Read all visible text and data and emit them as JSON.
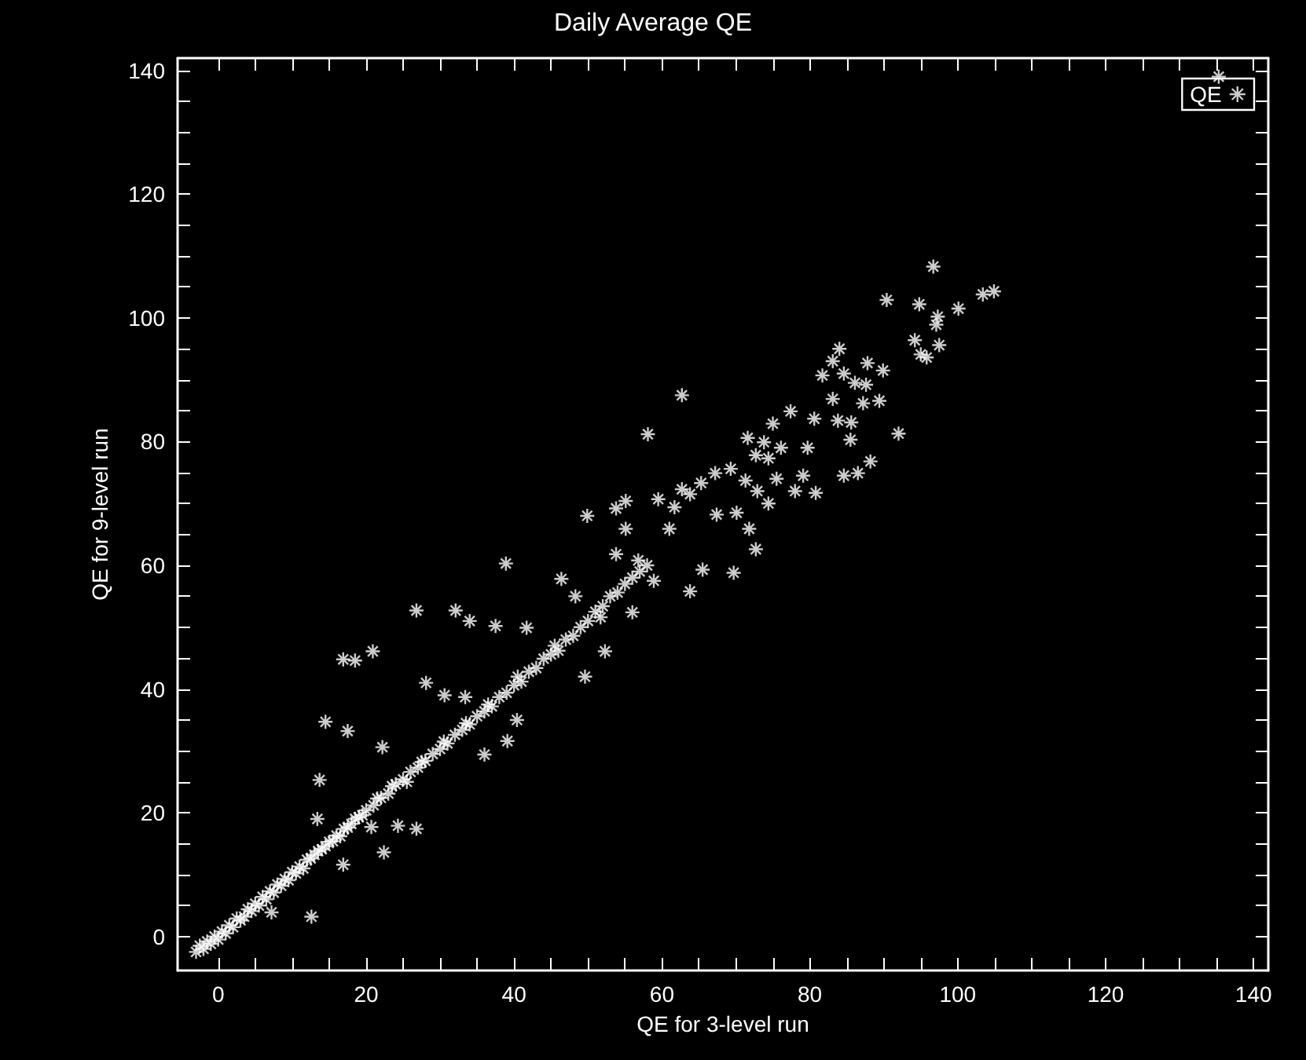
{
  "chart_data": {
    "type": "scatter",
    "title": "Daily Average QE",
    "xlabel": "QE for 3-level run",
    "ylabel": "QE for 9-level run",
    "xlim": [
      -5.5,
      142
    ],
    "ylim": [
      -5.5,
      142
    ],
    "xticks": [
      0,
      20,
      40,
      60,
      80,
      100,
      120,
      140
    ],
    "yticks": [
      0,
      20,
      40,
      60,
      80,
      100,
      120,
      140
    ],
    "legend": "top right",
    "marker": "cross",
    "grid": false,
    "series": [
      {
        "name": "QE",
        "color": "#ffffff",
        "x": [
          -3,
          -2.5,
          -2,
          -1.5,
          -1,
          -0.5,
          0,
          0.5,
          1,
          1.5,
          2,
          2.5,
          3,
          3.5,
          4,
          4.5,
          5,
          5.5,
          6,
          6.5,
          7,
          7.5,
          8,
          8.5,
          9,
          9.5,
          10,
          10.5,
          11,
          11.5,
          12,
          12.5,
          13,
          13.5,
          14,
          14.5,
          15,
          15.5,
          16,
          16.5,
          17,
          17.5,
          18,
          18.5,
          19,
          19.5,
          20,
          21,
          21.5,
          22,
          23,
          23.5,
          24,
          25,
          25.5,
          26,
          27,
          27.5,
          28,
          29,
          30,
          30.5,
          31,
          32,
          33,
          33.5,
          34,
          35,
          36,
          36.5,
          37,
          38,
          39,
          40,
          40.5,
          41,
          42,
          43,
          44,
          45,
          45.5,
          46,
          47,
          48,
          49,
          50,
          51,
          52,
          53,
          54,
          55,
          56,
          57,
          58,
          49.9,
          53.8,
          38.9,
          46.4,
          26.8,
          32.1,
          34,
          37.5,
          41.7,
          16.9,
          18.5,
          20.9,
          28.1,
          30.6,
          33.4,
          14.5,
          17.5,
          22.2,
          40.4,
          39.1,
          36,
          13.7,
          13.4,
          20.7,
          24.3,
          26.8,
          22.4,
          16.9,
          12.6,
          7.2,
          49.6,
          52.3,
          135.3,
          96.7,
          90.4,
          94.8,
          97.3,
          97.1,
          100.1,
          103.4,
          104.9,
          94.2,
          97.5,
          95,
          95.8,
          89.9,
          89.4,
          92,
          84,
          83.1,
          87.8,
          81.7,
          84.6,
          86.1,
          87.6,
          83.1,
          87.2,
          62.7,
          58.1,
          77.4,
          80.6,
          83.8,
          85.6,
          75,
          71.6,
          73.8,
          76.1,
          79.7,
          85.5,
          72.7,
          74.4,
          88.2,
          84.6,
          86.5,
          67.2,
          69.3,
          79.1,
          75.5,
          80.8,
          78,
          71.3,
          72.9,
          74.4,
          62.7,
          65.3,
          55.1,
          59.5,
          61.7,
          63.8,
          55.1,
          61,
          67.4,
          70.1,
          71.8,
          72.7,
          69.7,
          63.8,
          58.9,
          65.5,
          56.8,
          53.8,
          51.7,
          56,
          48.3
        ],
        "values": [
          -2.5,
          -1.5,
          -2,
          -0.8,
          -1.2,
          0,
          -0.5,
          0.8,
          0.5,
          1.8,
          1.5,
          2.9,
          2.6,
          3.2,
          4.4,
          4.1,
          5.3,
          5,
          6.4,
          6,
          7.3,
          7.1,
          8.4,
          8.2,
          9.3,
          9.1,
          10.4,
          10.2,
          11.3,
          11,
          12.4,
          12.6,
          13.2,
          13.8,
          14.1,
          14.6,
          15.3,
          15.4,
          16.3,
          16.2,
          17.4,
          17.6,
          18.2,
          19,
          19.3,
          19.6,
          20.4,
          21.2,
          22.3,
          22.4,
          23.1,
          24.3,
          24.6,
          25.4,
          25,
          26.6,
          27.3,
          28.2,
          28.4,
          29.5,
          30.3,
          31.5,
          31.2,
          32.6,
          33.4,
          34.5,
          34.3,
          35.6,
          36.4,
          37.5,
          37.2,
          38.7,
          39.4,
          40.6,
          42,
          41.2,
          42.8,
          43.4,
          44.9,
          45.6,
          47,
          46.2,
          48,
          48.6,
          50,
          51,
          52.5,
          53.4,
          55,
          55.6,
          57,
          58,
          59,
          60,
          68,
          69.2,
          60.3,
          57.8,
          52.7,
          52.7,
          51,
          50.2,
          49.9,
          44.8,
          44.6,
          46.1,
          41,
          39,
          38.7,
          34.7,
          33.2,
          30.6,
          35,
          31.6,
          29.4,
          25.3,
          19,
          17.7,
          17.9,
          17.4,
          13.6,
          11.6,
          3.2,
          3.9,
          42,
          46.1,
          139,
          108.3,
          102.9,
          102.2,
          100.2,
          98.9,
          101.5,
          103.8,
          104.3,
          96.4,
          95.6,
          94.1,
          93.6,
          91.5,
          86.6,
          81.3,
          95,
          93,
          92.7,
          90.7,
          91,
          89.5,
          89.2,
          86.9,
          86.2,
          87.5,
          81.2,
          84.9,
          83.7,
          83.4,
          83.1,
          82.9,
          80.6,
          79.9,
          79,
          79,
          80.3,
          77.8,
          77.3,
          76.8,
          74.5,
          74.9,
          74.9,
          75.6,
          74.5,
          74,
          71.7,
          72,
          73.7,
          72,
          70,
          72.3,
          73.3,
          70.4,
          70.7,
          69.4,
          71.5,
          65.9,
          65.9,
          68.2,
          68.5,
          65.9,
          62.6,
          58.8,
          55.8,
          57.5,
          59.3,
          60.8,
          61.8,
          51.6,
          52.4,
          55
        ]
      }
    ]
  }
}
